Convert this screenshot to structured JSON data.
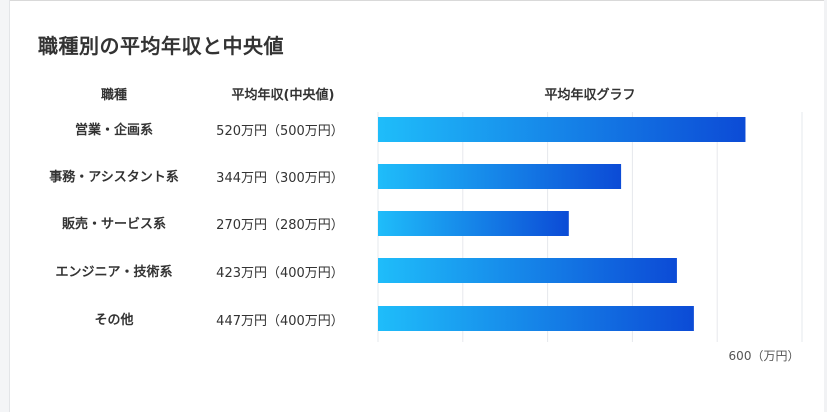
{
  "title": "職種別の平均年収と中央値",
  "table": {
    "headers": {
      "category": "職種",
      "value": "平均年収(中央値)",
      "graph": "平均年収グラフ"
    },
    "rows": [
      {
        "label": "営業・企画系",
        "value_text": "520万円（500万円）"
      },
      {
        "label": "事務・アシスタント系",
        "value_text": "344万円（300万円）"
      },
      {
        "label": "販売・サービス系",
        "value_text": "270万円（280万円）"
      },
      {
        "label": "エンジニア・技術系",
        "value_text": "423万円（400万円）"
      },
      {
        "label": "その他",
        "value_text": "447万円（400万円）"
      }
    ]
  },
  "axis_label": "600（万円）",
  "chart_data": {
    "type": "bar",
    "orientation": "horizontal",
    "title": "平均年収グラフ",
    "categories": [
      "営業・企画系",
      "事務・アシスタント系",
      "販売・サービス系",
      "エンジニア・技術系",
      "その他"
    ],
    "values": [
      520,
      344,
      270,
      423,
      447
    ],
    "medians": [
      500,
      300,
      280,
      400,
      400
    ],
    "unit": "万円",
    "xlim": [
      0,
      600
    ],
    "grid_values": [
      0,
      120,
      240,
      360,
      480,
      600
    ],
    "grid": true,
    "colors": {
      "bar_start": "#1fbdfa",
      "bar_end": "#0c4bd6",
      "grid": "#e6e8ec"
    }
  }
}
